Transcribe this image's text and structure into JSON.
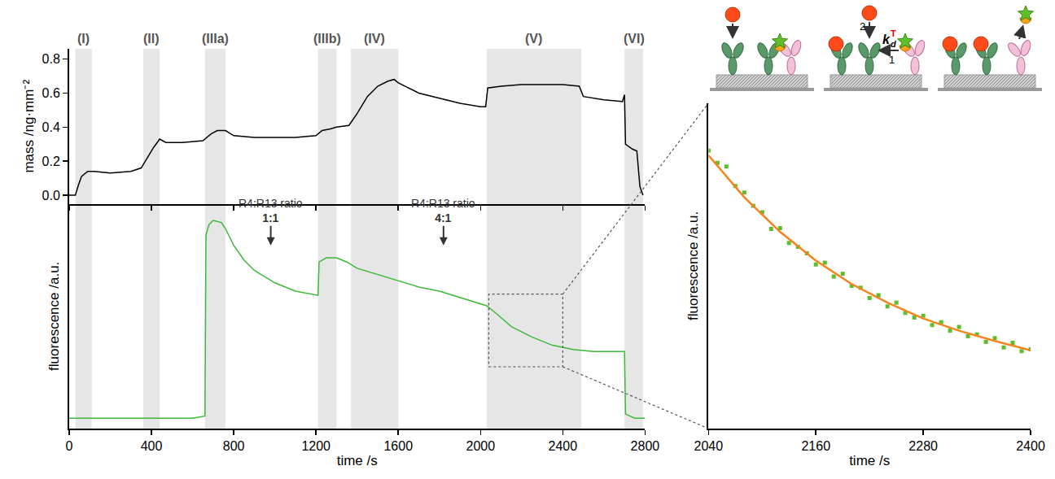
{
  "chart_data": [
    {
      "type": "line",
      "y_title": "mass /ng·mm⁻²",
      "xlim": [
        0,
        2800
      ],
      "xticks": [
        0,
        400,
        800,
        1200,
        1600,
        2000,
        2400,
        2800
      ],
      "ylim": [
        -0.05,
        0.86
      ],
      "yticks": [
        {
          "value": 0,
          "label": "0.0"
        },
        0.2,
        0.4,
        0.6,
        0.8
      ],
      "tick_labels": "y",
      "regions": [
        {
          "label": "(I)",
          "x": [
            30,
            110
          ]
        },
        {
          "label": "(II)",
          "x": [
            360,
            440
          ]
        },
        {
          "label": "(IIIa)",
          "x": [
            660,
            760
          ]
        },
        {
          "label": "(IIIb)",
          "x": [
            1210,
            1300
          ]
        },
        {
          "label": "(IV)",
          "x": [
            1370,
            1600
          ]
        },
        {
          "label": "(V)",
          "x": [
            2030,
            2490
          ]
        },
        {
          "label": "(VI)",
          "x": [
            2700,
            2790
          ]
        }
      ],
      "series": [
        {
          "color": "#000000",
          "x": [
            0,
            30,
            45,
            60,
            90,
            120,
            200,
            300,
            350,
            380,
            410,
            440,
            470,
            550,
            650,
            690,
            720,
            760,
            800,
            900,
            1000,
            1100,
            1200,
            1230,
            1270,
            1300,
            1360,
            1400,
            1450,
            1500,
            1550,
            1580,
            1600,
            1650,
            1700,
            1800,
            1900,
            2000,
            2025,
            2035,
            2100,
            2200,
            2300,
            2400,
            2480,
            2500,
            2600,
            2690,
            2700,
            2705,
            2740,
            2760,
            2775,
            2790
          ],
          "values": [
            0,
            0,
            0.06,
            0.11,
            0.14,
            0.14,
            0.13,
            0.14,
            0.16,
            0.22,
            0.28,
            0.33,
            0.31,
            0.31,
            0.32,
            0.36,
            0.38,
            0.38,
            0.35,
            0.34,
            0.34,
            0.34,
            0.35,
            0.38,
            0.39,
            0.4,
            0.41,
            0.48,
            0.58,
            0.64,
            0.67,
            0.68,
            0.66,
            0.63,
            0.6,
            0.57,
            0.54,
            0.52,
            0.52,
            0.63,
            0.64,
            0.65,
            0.65,
            0.65,
            0.64,
            0.58,
            0.56,
            0.55,
            0.59,
            0.3,
            0.27,
            0.26,
            0.05,
            0
          ]
        }
      ]
    },
    {
      "type": "line",
      "x_title": "time /s",
      "y_title": "fluorescence /a.u.",
      "xlim": [
        0,
        2800
      ],
      "xticks": [
        0,
        400,
        800,
        1200,
        1600,
        2000,
        2400,
        2800
      ],
      "ylim": [
        -0.03,
        1.05
      ],
      "tick_labels": "x",
      "annotations": [
        {
          "text": "R4:R13 ratio",
          "emphasis": "1:1",
          "x": 980,
          "y": 0.85
        },
        {
          "text": "R4:R13 ratio",
          "emphasis": "4:1",
          "x": 1820,
          "y": 0.85
        }
      ],
      "series": [
        {
          "color": "#3db83a",
          "x": [
            0,
            200,
            400,
            600,
            660,
            665,
            680,
            700,
            740,
            760,
            800,
            850,
            900,
            1000,
            1100,
            1200,
            1210,
            1215,
            1250,
            1300,
            1350,
            1400,
            1500,
            1600,
            1700,
            1800,
            1900,
            2000,
            2030,
            2080,
            2150,
            2250,
            2350,
            2450,
            2550,
            2650,
            2700,
            2705,
            2750,
            2800
          ],
          "values": [
            0.02,
            0.02,
            0.02,
            0.02,
            0.03,
            0.9,
            0.95,
            0.97,
            0.96,
            0.93,
            0.85,
            0.78,
            0.73,
            0.67,
            0.63,
            0.61,
            0.61,
            0.77,
            0.79,
            0.79,
            0.77,
            0.74,
            0.71,
            0.68,
            0.65,
            0.63,
            0.6,
            0.57,
            0.56,
            0.52,
            0.46,
            0.41,
            0.37,
            0.35,
            0.34,
            0.34,
            0.34,
            0.04,
            0.02,
            0.02
          ]
        }
      ]
    },
    {
      "type": "scatter",
      "x_title": "time /s",
      "y_title": "fluorescence /a.u.",
      "xlim": [
        2040,
        2400
      ],
      "xticks": [
        2040,
        2160,
        2280,
        2400
      ],
      "ylim": [
        0.267,
        0.616
      ],
      "tick_labels": "x",
      "series": [
        {
          "type": "scatter",
          "marker": "square",
          "color": "#5cbf2a",
          "x": [
            2040,
            2050,
            2060,
            2070,
            2080,
            2090,
            2100,
            2110,
            2120,
            2130,
            2140,
            2150,
            2160,
            2170,
            2180,
            2190,
            2200,
            2210,
            2220,
            2230,
            2240,
            2250,
            2260,
            2270,
            2280,
            2290,
            2300,
            2310,
            2320,
            2330,
            2340,
            2350,
            2360,
            2370,
            2380,
            2390,
            2400
          ],
          "values": [
            0.565,
            0.552,
            0.548,
            0.527,
            0.52,
            0.506,
            0.499,
            0.481,
            0.482,
            0.466,
            0.462,
            0.455,
            0.443,
            0.445,
            0.43,
            0.433,
            0.42,
            0.418,
            0.407,
            0.41,
            0.398,
            0.402,
            0.391,
            0.386,
            0.388,
            0.378,
            0.381,
            0.372,
            0.376,
            0.366,
            0.368,
            0.36,
            0.364,
            0.354,
            0.359,
            0.35,
            0.352
          ]
        },
        {
          "type": "line",
          "color": "#f5841f",
          "x": [
            2040,
            2080,
            2120,
            2160,
            2200,
            2240,
            2280,
            2320,
            2360,
            2400
          ],
          "values": [
            0.56,
            0.515,
            0.478,
            0.447,
            0.422,
            0.402,
            0.385,
            0.372,
            0.361,
            0.351
          ]
        }
      ]
    }
  ],
  "schematic": {
    "rate_constant": {
      "symbol": "k",
      "subscript": "d",
      "superscript": "T"
    },
    "step_labels": [
      "2",
      "1"
    ]
  }
}
